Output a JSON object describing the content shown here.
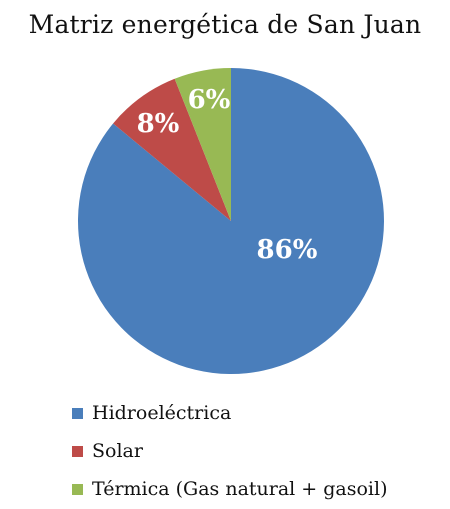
{
  "chart_data": {
    "type": "pie",
    "title": "Matriz energética de San Juan",
    "categories": [
      "Hidroeléctrica",
      "Solar",
      "Térmica (Gas natural + gasoil)"
    ],
    "values": [
      86,
      8,
      6
    ],
    "data_labels": [
      "86%",
      "8%",
      "6%"
    ],
    "colors": [
      "#4a7ebb",
      "#be4b48",
      "#98b954"
    ],
    "legend": "bottom-left"
  }
}
